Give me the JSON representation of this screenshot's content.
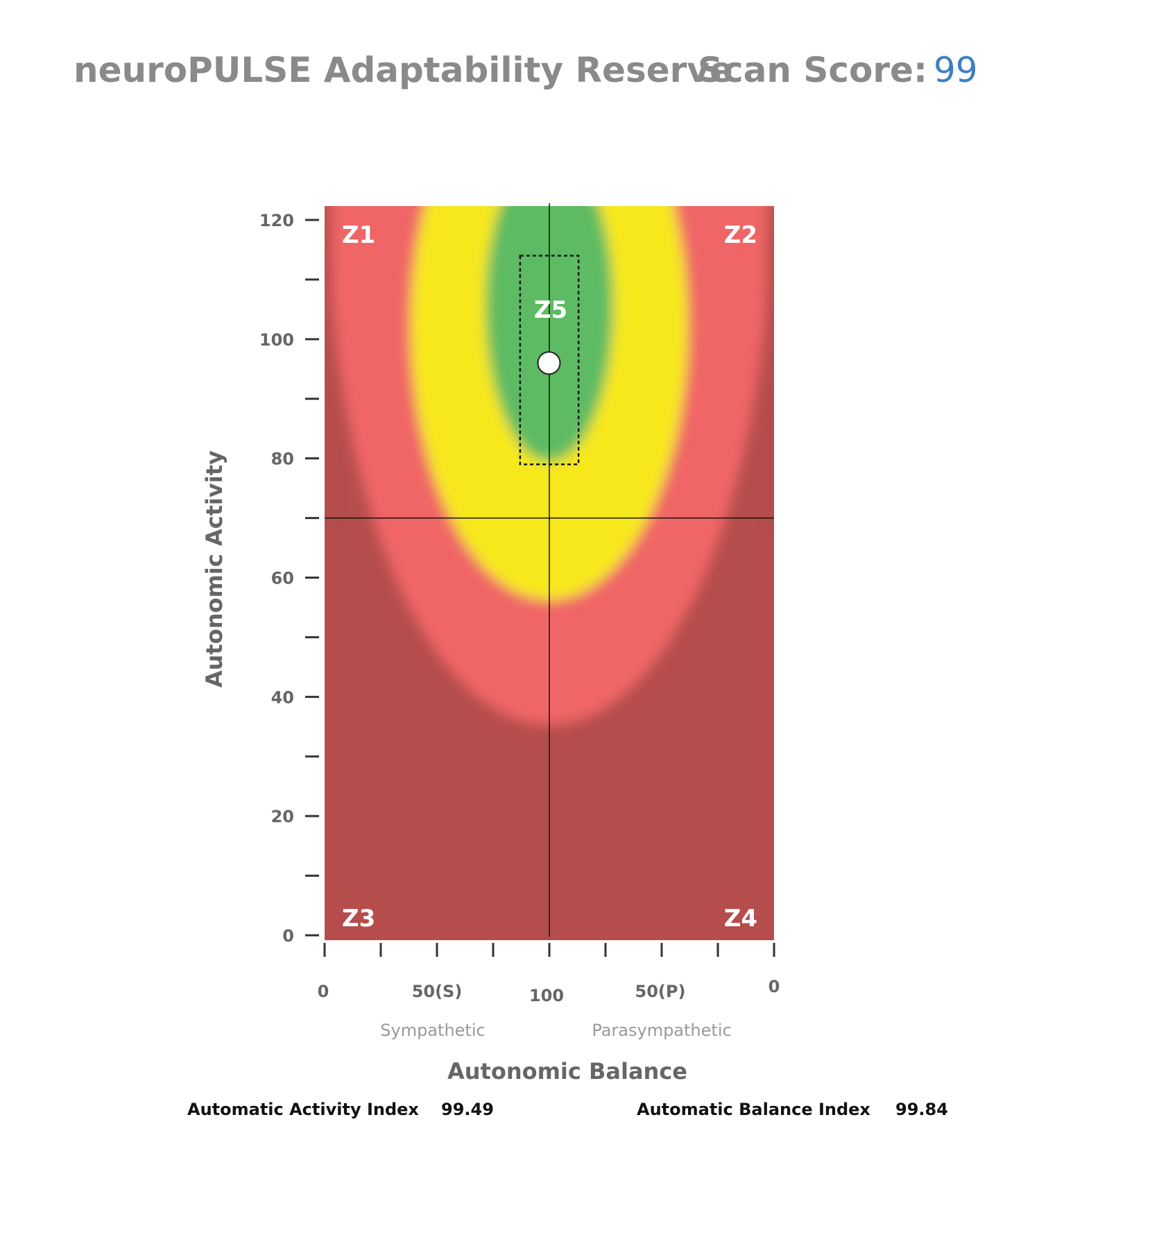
{
  "header": {
    "title": "neuroPULSE Adaptability Reserve",
    "score_label": "Scan Score:",
    "score_value": "99"
  },
  "chart_data": {
    "type": "scatter",
    "title": "",
    "xlabel": "Autonomic Balance",
    "ylabel": "Autonomic Activity",
    "x_tick_labels": [
      "0",
      "50(S)",
      "100",
      "50(P)",
      "0"
    ],
    "x_side_labels": [
      "Sympathetic",
      "Parasympathetic"
    ],
    "y_tick_labels": [
      "0",
      "20",
      "40",
      "60",
      "80",
      "100",
      "120"
    ],
    "ylim": [
      0,
      120
    ],
    "zones": [
      "Z1",
      "Z2",
      "Z3",
      "Z4",
      "Z5"
    ],
    "zone_colors": {
      "dark_red": "#b54d4c",
      "red": "#f06666",
      "yellow": "#f7e81e",
      "green": "#5dbb63"
    },
    "point": {
      "balance": 99.84,
      "activity": 96
    },
    "crosshair": {
      "balance": 100,
      "activity": 70
    },
    "target_box": {
      "balance_from": 87,
      "balance_to": 113,
      "activity_from": 79,
      "activity_to": 114
    }
  },
  "indices": {
    "activity_label": "Automatic Activity Index",
    "activity_value": "99.49",
    "balance_label": "Automatic Balance Index",
    "balance_value": "99.84"
  }
}
